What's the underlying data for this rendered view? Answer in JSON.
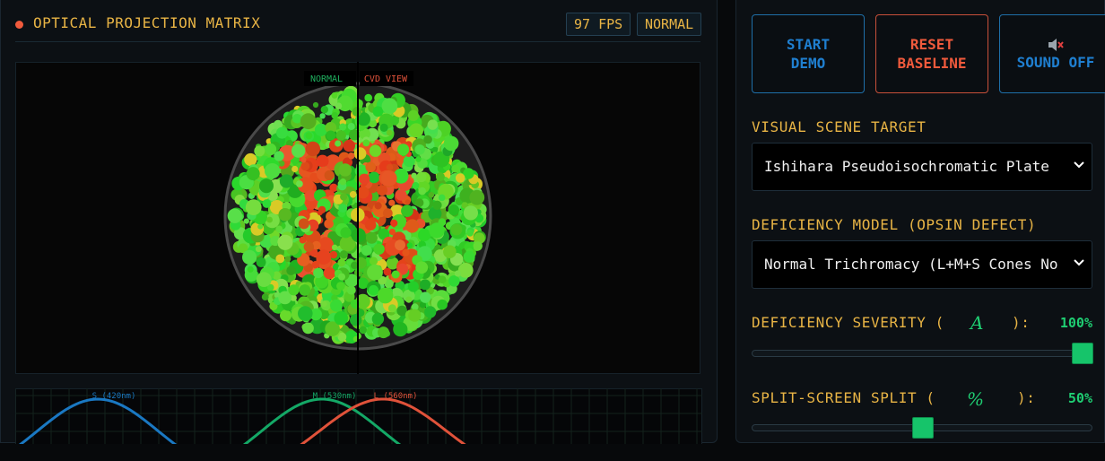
{
  "header": {
    "title": "OPTICAL PROJECTION MATRIX",
    "fps": "97 FPS",
    "mode": "NORMAL"
  },
  "plate": {
    "left_label": "NORMAL",
    "right_label": "CVD VIEW"
  },
  "spectrum": {
    "labels": [
      "S (420nm)",
      "M (530nm)",
      "L (560nm)"
    ]
  },
  "buttons": {
    "start": "START DEMO",
    "reset": "RESET BASELINE",
    "sound": "SOUND OFF"
  },
  "controls": {
    "scene_label": "VISUAL SCENE TARGET",
    "scene_value": "Ishihara Pseudoisochromatic Plate",
    "model_label": "DEFICIENCY MODEL (OPSIN DEFECT)",
    "model_value": "Normal Trichromacy (L+M+S Cones No",
    "severity": {
      "label_pre": "DEFICIENCY SEVERITY (",
      "symbol": "A",
      "label_post": "):",
      "value": {
        "value": 100,
        "label": "100%"
      }
    },
    "split": {
      "label_pre": "SPLIT-SCREEN SPLIT (",
      "symbol": "%",
      "label_post": "):",
      "value": {
        "value": 50,
        "label": "50%"
      }
    }
  }
}
